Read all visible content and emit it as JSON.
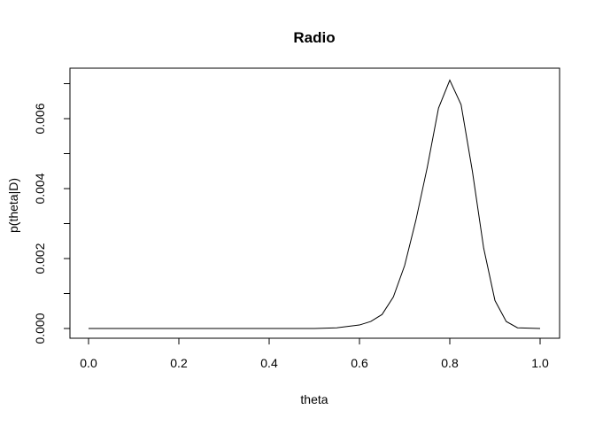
{
  "chart_data": {
    "type": "line",
    "title": "Radio",
    "xlabel": "theta",
    "ylabel": "p(theta|D)",
    "xlim": [
      0.0,
      1.0
    ],
    "ylim": [
      0.0,
      0.0071
    ],
    "x_ticks": [
      "0.0",
      "0.2",
      "0.4",
      "0.6",
      "0.8",
      "1.0"
    ],
    "y_ticks": [
      "0.000",
      "0.002",
      "0.004",
      "0.006"
    ],
    "series": [
      {
        "x": [
          0.0,
          0.5,
          0.55,
          0.6,
          0.625,
          0.65,
          0.675,
          0.7,
          0.725,
          0.75,
          0.775,
          0.8,
          0.825,
          0.85,
          0.875,
          0.9,
          0.925,
          0.95,
          1.0
        ],
        "y": [
          0.0,
          0.0,
          2e-05,
          0.0001,
          0.0002,
          0.0004,
          0.0009,
          0.0018,
          0.0031,
          0.0046,
          0.0063,
          0.0071,
          0.0064,
          0.0045,
          0.0023,
          0.0008,
          0.0002,
          2e-05,
          0.0
        ]
      }
    ],
    "color": "#000000",
    "grid": false
  }
}
